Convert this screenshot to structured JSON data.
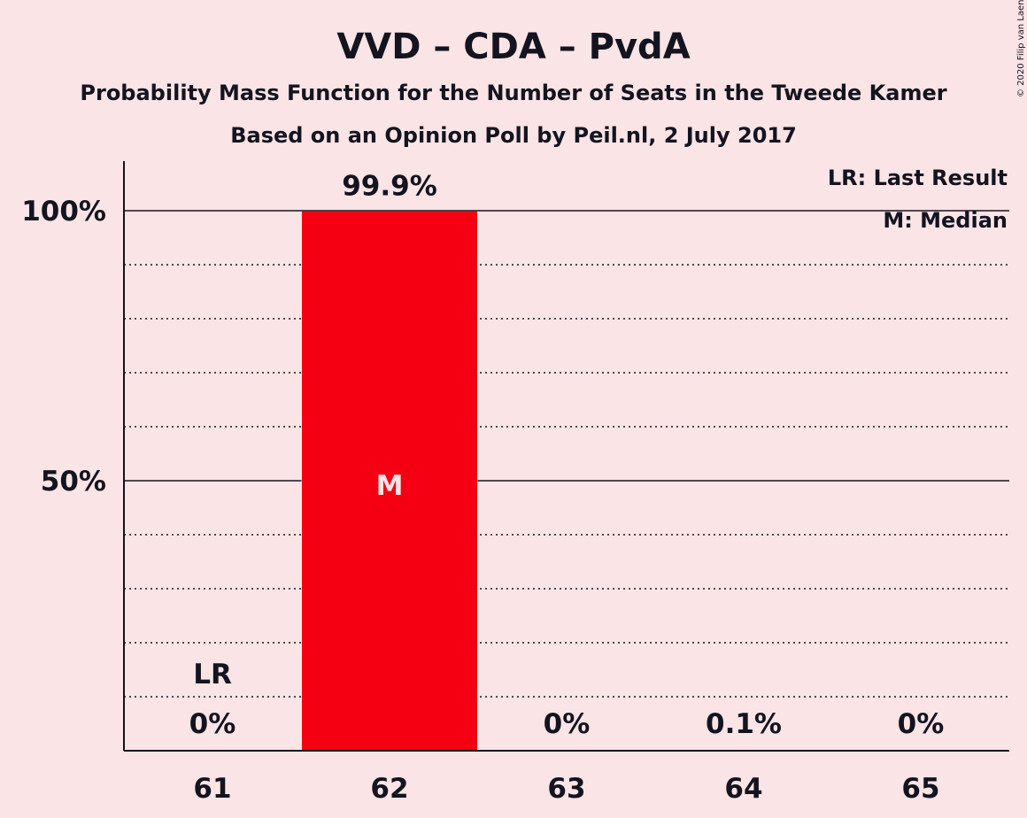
{
  "title": "VVD – CDA – PvdA",
  "subtitle_1": "Probability Mass Function for the Number of Seats in the Tweede Kamer",
  "subtitle_2": "Based on an Opinion Poll by Peil.nl, 2 July 2017",
  "copyright": "© 2020 Filip van Laenen",
  "legend": {
    "last_result": "LR: Last Result",
    "median": "M: Median"
  },
  "colors": {
    "background": "#fbe4e6",
    "bar": "#f40012",
    "text": "#13141f"
  },
  "chart_data": {
    "type": "bar",
    "categories": [
      "61",
      "62",
      "63",
      "64",
      "65"
    ],
    "values": [
      0,
      99.9,
      0,
      0.1,
      0
    ],
    "value_labels": [
      "0%",
      "99.9%",
      "0%",
      "0.1%",
      "0%"
    ],
    "yticks": [
      {
        "value": 50,
        "label": "50%"
      },
      {
        "value": 100,
        "label": "100%"
      }
    ],
    "ylim": [
      0,
      109
    ],
    "grid": "dotted every 10%, solid at 50% and 100%",
    "last_result": {
      "category": "61",
      "label": "LR"
    },
    "median": {
      "category": "62",
      "label": "M"
    }
  }
}
